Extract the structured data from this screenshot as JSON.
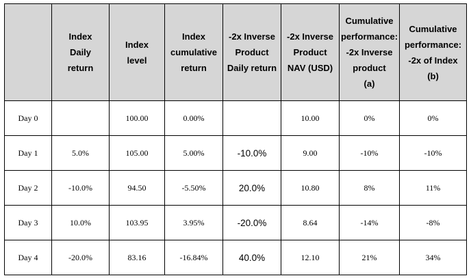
{
  "headers": [
    [
      ""
    ],
    [
      "Index",
      "Daily",
      "return"
    ],
    [
      "Index",
      "level"
    ],
    [
      "Index",
      "cumulative",
      "return"
    ],
    [
      "-2x Inverse",
      "Product",
      "Daily return"
    ],
    [
      "-2x Inverse",
      "Product",
      "NAV (USD)"
    ],
    [
      "Cumulative",
      "performance:",
      "-2x Inverse",
      "product",
      "(a)"
    ],
    [
      "Cumulative",
      "performance:",
      "-2x of Index",
      "(b)"
    ]
  ],
  "rows": [
    [
      "Day 0",
      "",
      "100.00",
      "0.00%",
      "",
      "10.00",
      "0%",
      "0%"
    ],
    [
      "Day 1",
      "5.0%",
      "105.00",
      "5.00%",
      "-10.0%",
      "9.00",
      "-10%",
      "-10%"
    ],
    [
      "Day 2",
      "-10.0%",
      "94.50",
      "-5.50%",
      "20.0%",
      "10.80",
      "8%",
      "11%"
    ],
    [
      "Day 3",
      "10.0%",
      "103.95",
      "3.95%",
      "-20.0%",
      "8.64",
      "-14%",
      "-8%"
    ],
    [
      "Day 4",
      "-20.0%",
      "83.16",
      "-16.84%",
      "40.0%",
      "12.10",
      "21%",
      "34%"
    ]
  ]
}
